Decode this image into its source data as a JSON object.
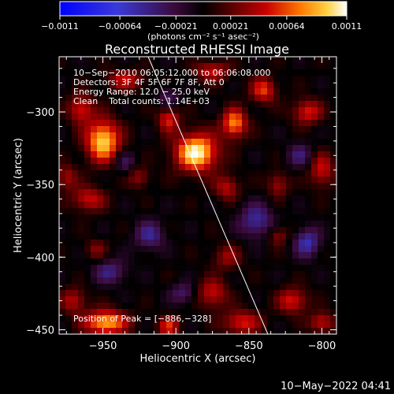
{
  "chart_data": {
    "type": "heatmap",
    "title": "Reconstructed RHESSI Image",
    "xlabel": "Heliocentric X (arcsec)",
    "ylabel": "Heliocentric Y (arcsec)",
    "xlim": [
      -980,
      -790
    ],
    "ylim": [
      -453,
      -262
    ],
    "x_ticks": [
      -950,
      -900,
      -850,
      -800
    ],
    "y_ticks": [
      -300,
      -350,
      -400,
      -450
    ],
    "x_tick_labels": [
      "−950",
      "−900",
      "−850",
      "−800"
    ],
    "y_tick_labels": [
      "−300",
      "−350",
      "−400",
      "−450"
    ],
    "colorbar": {
      "min": -0.0011,
      "max": 0.0011,
      "tick_values": [
        -0.0011,
        -0.00064,
        -0.00021,
        0.00021,
        0.00064,
        0.0011
      ],
      "tick_labels": [
        "−0.0011",
        "−0.00064",
        "−0.00021",
        "0.00021",
        "0.00064",
        "0.0011"
      ],
      "units_label": "(photons cm⁻² s⁻¹ asec⁻²)"
    },
    "annotations": [
      "10−Sep−2010 06:05:12.000 to 06:06:08.000",
      "Detectors: 3F 4F 5F 6F 7F 8F, Att 0",
      "Energy Range: 12.0 − 25.0 keV",
      "Clean    Total counts: 1.14E+03"
    ],
    "peak_label": "Position of Peak = [−886,−328]",
    "peak": [
      -886,
      -328
    ],
    "limb_line": [
      [
        -919,
        -262
      ],
      [
        -837,
        -453
      ]
    ],
    "intensity_blobs": [
      {
        "x": -950,
        "y": -320,
        "sx": 8,
        "sy": 10,
        "amp": 1.0
      },
      {
        "x": -886,
        "y": -328,
        "sx": 10,
        "sy": 9,
        "amp": 1.1
      },
      {
        "x": -860,
        "y": -308,
        "sx": 6,
        "sy": 7,
        "amp": 0.8
      },
      {
        "x": -905,
        "y": -305,
        "sx": 5,
        "sy": 6,
        "amp": 0.55
      },
      {
        "x": -965,
        "y": -298,
        "sx": 6,
        "sy": 7,
        "amp": 0.55
      },
      {
        "x": -840,
        "y": -285,
        "sx": 6,
        "sy": 6,
        "amp": 0.6
      },
      {
        "x": -810,
        "y": -300,
        "sx": 7,
        "sy": 6,
        "amp": 0.55
      },
      {
        "x": -875,
        "y": -272,
        "sx": 8,
        "sy": 5,
        "amp": 0.5
      },
      {
        "x": -935,
        "y": -278,
        "sx": 9,
        "sy": 5,
        "amp": 0.45
      },
      {
        "x": -800,
        "y": -340,
        "sx": 6,
        "sy": 8,
        "amp": 0.5
      },
      {
        "x": -830,
        "y": -350,
        "sx": 5,
        "sy": 6,
        "amp": 0.4
      },
      {
        "x": -865,
        "y": -352,
        "sx": 6,
        "sy": 6,
        "amp": 0.45
      },
      {
        "x": -960,
        "y": -360,
        "sx": 8,
        "sy": 6,
        "amp": 0.5
      },
      {
        "x": -925,
        "y": -345,
        "sx": 5,
        "sy": 5,
        "amp": 0.35
      },
      {
        "x": -955,
        "y": -395,
        "sx": 5,
        "sy": 5,
        "amp": 0.3
      },
      {
        "x": -865,
        "y": -400,
        "sx": 7,
        "sy": 6,
        "amp": 0.35
      },
      {
        "x": -830,
        "y": -385,
        "sx": 5,
        "sy": 5,
        "amp": 0.35
      },
      {
        "x": -875,
        "y": -425,
        "sx": 7,
        "sy": 7,
        "amp": 0.5
      },
      {
        "x": -855,
        "y": -445,
        "sx": 9,
        "sy": 6,
        "amp": 0.55
      },
      {
        "x": -820,
        "y": -430,
        "sx": 7,
        "sy": 6,
        "amp": 0.55
      },
      {
        "x": -800,
        "y": -445,
        "sx": 6,
        "sy": 5,
        "amp": 0.5
      },
      {
        "x": -948,
        "y": -445,
        "sx": 10,
        "sy": 6,
        "amp": 0.9
      },
      {
        "x": -905,
        "y": -448,
        "sx": 5,
        "sy": 5,
        "amp": 0.55
      },
      {
        "x": -970,
        "y": -430,
        "sx": 6,
        "sy": 6,
        "amp": 0.45
      },
      {
        "x": -975,
        "y": -345,
        "sx": 5,
        "sy": 6,
        "amp": 0.4
      },
      {
        "x": -918,
        "y": -385,
        "sx": 7,
        "sy": 7,
        "amp": -0.45
      },
      {
        "x": -945,
        "y": -410,
        "sx": 8,
        "sy": 6,
        "amp": -0.4
      },
      {
        "x": -845,
        "y": -375,
        "sx": 8,
        "sy": 8,
        "amp": -0.5
      },
      {
        "x": -810,
        "y": -390,
        "sx": 6,
        "sy": 7,
        "amp": -0.55
      },
      {
        "x": -895,
        "y": -425,
        "sx": 6,
        "sy": 5,
        "amp": -0.35
      },
      {
        "x": -815,
        "y": -330,
        "sx": 6,
        "sy": 6,
        "amp": -0.35
      },
      {
        "x": -905,
        "y": -290,
        "sx": 5,
        "sy": 5,
        "amp": -0.3
      },
      {
        "x": -935,
        "y": -335,
        "sx": 5,
        "sy": 5,
        "amp": -0.3
      }
    ]
  },
  "footer": {
    "timestamp": "10−May−2022 04:41"
  }
}
